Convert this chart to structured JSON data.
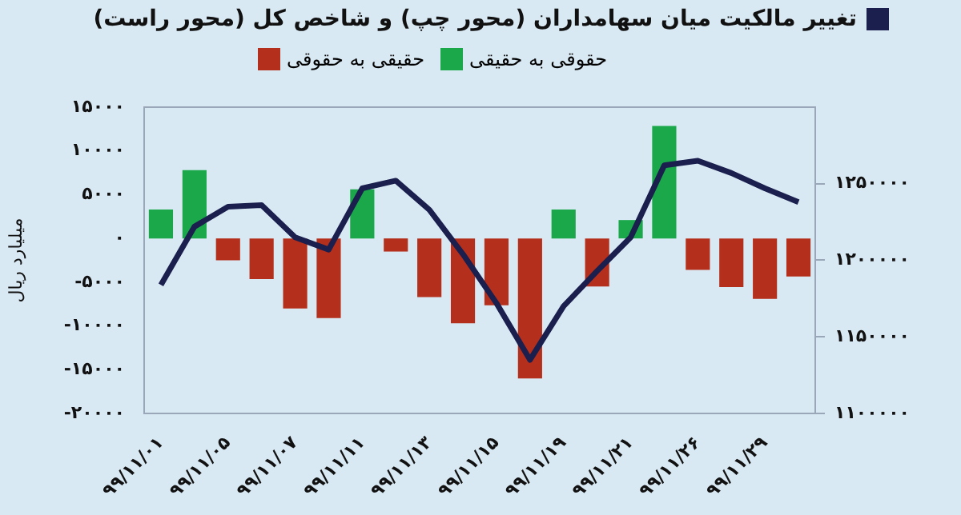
{
  "chart_data": {
    "type": "bar",
    "title": "تغییر مالکیت میان سهامداران (محور چپ) و شاخص کل (محور راست)",
    "ylabel": "میلیارد ریال",
    "stacked": true,
    "legend": "top",
    "categories": [
      "۹۹/۱۱/۰۱",
      null,
      "۹۹/۱۱/۰۵",
      null,
      "۹۹/۱۱/۰۷",
      null,
      "۹۹/۱۱/۱۱",
      null,
      "۹۹/۱۱/۱۳",
      null,
      "۹۹/۱۱/۱۵",
      null,
      "۹۹/۱۱/۱۹",
      null,
      "۹۹/۱۱/۲۱",
      null,
      "۹۹/۱۱/۲۶",
      null,
      "۹۹/۱۱/۲۹",
      null
    ],
    "series": [
      {
        "name": "حقوقی به حقیقی",
        "color": "#1aa84a",
        "values": [
          3300,
          7800,
          null,
          null,
          null,
          null,
          5600,
          null,
          null,
          null,
          null,
          null,
          3300,
          null,
          2100,
          12850,
          null,
          null,
          null,
          null
        ]
      },
      {
        "name": "حقیقی به حقوقی",
        "color": "#b5301c",
        "values": [
          null,
          null,
          -2500,
          -4650,
          -8000,
          -9100,
          null,
          -1500,
          -6700,
          -9700,
          -7650,
          -16000,
          null,
          -5500,
          null,
          null,
          -3600,
          -5550,
          -6900,
          -4350
        ]
      },
      {
        "type": "line",
        "axis": "y2",
        "color": "#1a1f4e",
        "values": [
          1184000,
          1222000,
          1235000,
          1236000,
          1215000,
          1207000,
          1247000,
          1252000,
          1233000,
          1204000,
          1172000,
          1135000,
          1170000,
          1193000,
          1215000,
          1262000,
          1265000,
          1257000,
          1247000,
          1238000
        ]
      }
    ],
    "ylim": [
      -20000,
      15000
    ],
    "yticks": [
      {
        "value": 15000,
        "label": "۱۵۰۰۰"
      },
      {
        "value": 10000,
        "label": "۱۰۰۰۰"
      },
      {
        "value": 5000,
        "label": "۵۰۰۰"
      },
      {
        "value": 0,
        "label": "۰"
      },
      {
        "value": -5000,
        "label": "-۵۰۰۰"
      },
      {
        "value": -10000,
        "label": "-۱۰۰۰۰"
      },
      {
        "value": -15000,
        "label": "-۱۵۰۰۰"
      },
      {
        "value": -20000,
        "label": "-۲۰۰۰۰"
      }
    ],
    "y2lim": [
      1100000,
      1300000
    ],
    "y2ticks": [
      {
        "value": 1100000,
        "label": "۱۱۰۰۰۰۰"
      },
      {
        "value": 1150000,
        "label": "۱۱۵۰۰۰۰"
      },
      {
        "value": 1200000,
        "label": "۱۲۰۰۰۰۰"
      },
      {
        "value": 1250000,
        "label": "۱۲۵۰۰۰۰"
      }
    ]
  }
}
